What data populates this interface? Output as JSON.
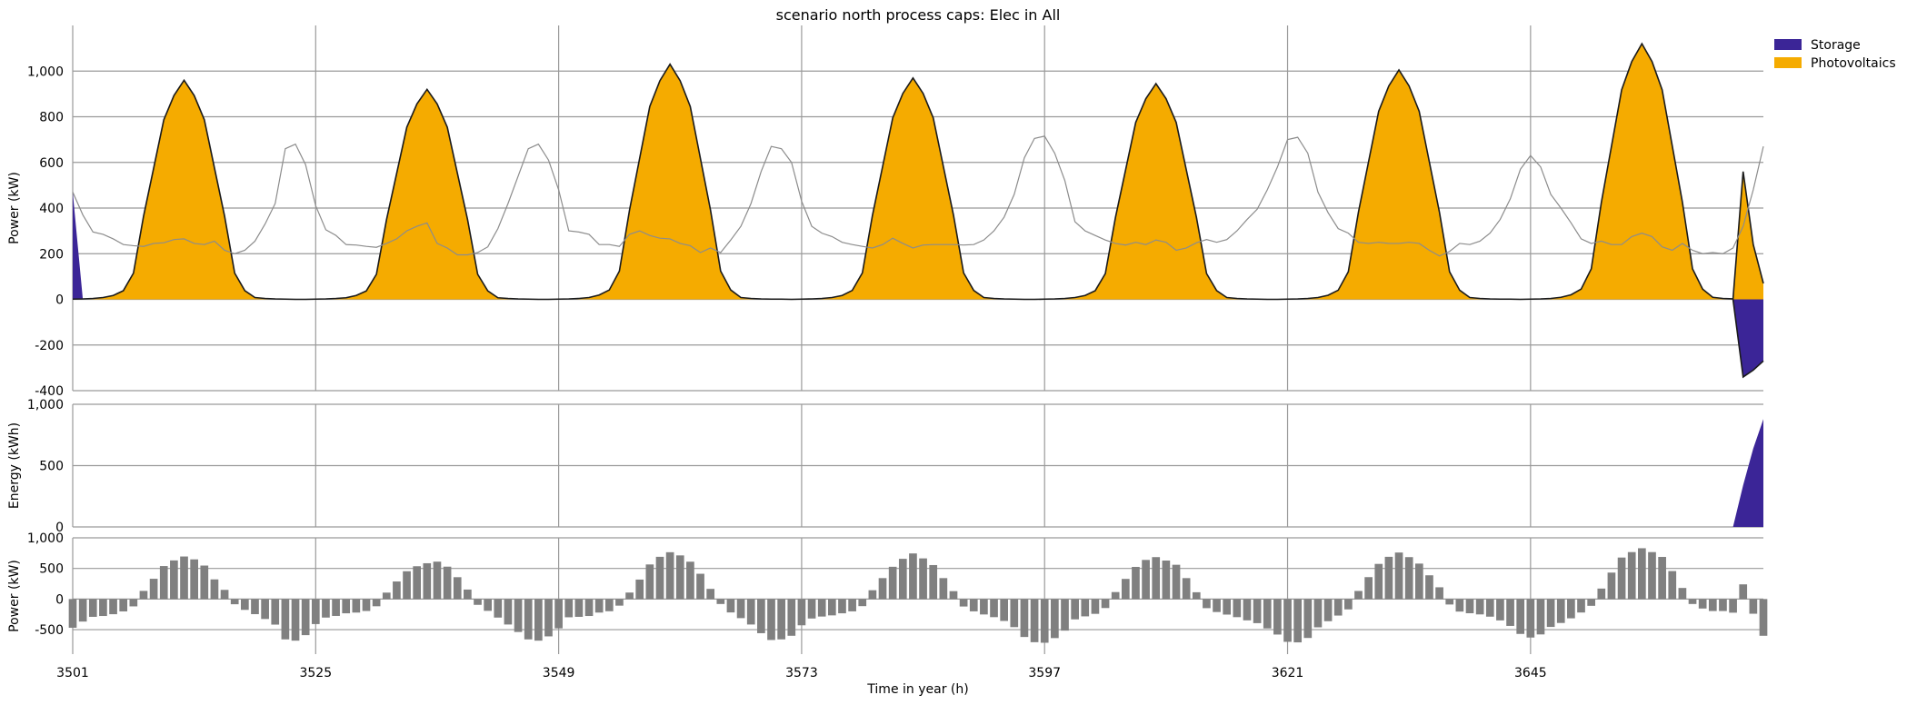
{
  "title": "scenario north process caps: Elec in All",
  "xlabel": "Time in year (h)",
  "x_ticks": [
    3501,
    3525,
    3549,
    3573,
    3597,
    3621,
    3645
  ],
  "x_range": [
    3501,
    3668
  ],
  "legend": {
    "placement": "top-right outside",
    "entries": [
      {
        "label": "Storage",
        "color": "#3b2597"
      },
      {
        "label": "Photovoltaics",
        "color": "#f5ab00"
      }
    ]
  },
  "chart_data": [
    {
      "type": "area",
      "panel": "power",
      "ylabel": "Power (kW)",
      "ylim": [
        -400,
        1200
      ],
      "y_ticks": [
        -400,
        -200,
        0,
        200,
        400,
        600,
        800,
        1000
      ],
      "y_tick_labels": [
        "-400",
        "-200",
        "0",
        "200",
        "400",
        "600",
        "800",
        "1,000"
      ],
      "grid": true,
      "series": [
        {
          "name": "Photovoltaics",
          "color": "#f5ab00",
          "generator": "pv_days",
          "days": [
            {
              "start": 3501,
              "peak": 960
            },
            {
              "start": 3525,
              "peak": 920
            },
            {
              "start": 3549,
              "peak": 1030
            },
            {
              "start": 3573,
              "peak": 970
            },
            {
              "start": 3597,
              "peak": 945
            },
            {
              "start": 3621,
              "peak": 1005
            },
            {
              "start": 3645,
              "peak": 1120
            }
          ],
          "final_values": [
            [
              3666,
              560
            ],
            [
              3667,
              240
            ],
            [
              3668,
              70
            ]
          ]
        },
        {
          "name": "Storage",
          "color": "#3b2597",
          "points": [
            [
              3501,
              470
            ],
            [
              3502,
              0
            ],
            [
              3665,
              0
            ],
            [
              3666,
              -340
            ],
            [
              3667,
              -310
            ],
            [
              3668,
              -270
            ]
          ]
        }
      ],
      "demand_line": {
        "color": "#8c8c8c",
        "points": [
          [
            3501,
            470
          ],
          [
            3502,
            370
          ],
          [
            3503,
            295
          ],
          [
            3504,
            285
          ],
          [
            3505,
            265
          ],
          [
            3506,
            240
          ],
          [
            3507,
            235
          ],
          [
            3508,
            232
          ],
          [
            3509,
            245
          ],
          [
            3510,
            248
          ],
          [
            3511,
            262
          ],
          [
            3512,
            265
          ],
          [
            3513,
            245
          ],
          [
            3514,
            240
          ],
          [
            3515,
            255
          ],
          [
            3516,
            215
          ],
          [
            3517,
            200
          ],
          [
            3518,
            215
          ],
          [
            3519,
            255
          ],
          [
            3520,
            330
          ],
          [
            3521,
            420
          ],
          [
            3522,
            660
          ],
          [
            3523,
            680
          ],
          [
            3524,
            590
          ],
          [
            3525,
            410
          ],
          [
            3526,
            305
          ],
          [
            3527,
            280
          ],
          [
            3528,
            240
          ],
          [
            3529,
            238
          ],
          [
            3530,
            232
          ],
          [
            3531,
            228
          ],
          [
            3532,
            245
          ],
          [
            3533,
            265
          ],
          [
            3534,
            300
          ],
          [
            3535,
            320
          ],
          [
            3536,
            335
          ],
          [
            3537,
            245
          ],
          [
            3538,
            225
          ],
          [
            3539,
            195
          ],
          [
            3540,
            195
          ],
          [
            3541,
            205
          ],
          [
            3542,
            230
          ],
          [
            3543,
            310
          ],
          [
            3544,
            420
          ],
          [
            3545,
            540
          ],
          [
            3546,
            660
          ],
          [
            3547,
            680
          ],
          [
            3548,
            610
          ],
          [
            3549,
            480
          ],
          [
            3550,
            300
          ],
          [
            3551,
            295
          ],
          [
            3552,
            285
          ],
          [
            3553,
            240
          ],
          [
            3554,
            240
          ],
          [
            3555,
            232
          ],
          [
            3556,
            285
          ],
          [
            3557,
            300
          ],
          [
            3558,
            280
          ],
          [
            3559,
            268
          ],
          [
            3560,
            265
          ],
          [
            3561,
            245
          ],
          [
            3562,
            235
          ],
          [
            3563,
            205
          ],
          [
            3564,
            225
          ],
          [
            3565,
            205
          ],
          [
            3566,
            260
          ],
          [
            3567,
            320
          ],
          [
            3568,
            420
          ],
          [
            3569,
            560
          ],
          [
            3570,
            670
          ],
          [
            3571,
            660
          ],
          [
            3572,
            600
          ],
          [
            3573,
            430
          ],
          [
            3574,
            320
          ],
          [
            3575,
            290
          ],
          [
            3576,
            275
          ],
          [
            3577,
            250
          ],
          [
            3578,
            240
          ],
          [
            3579,
            232
          ],
          [
            3580,
            225
          ],
          [
            3581,
            240
          ],
          [
            3582,
            268
          ],
          [
            3583,
            245
          ],
          [
            3584,
            225
          ],
          [
            3585,
            238
          ],
          [
            3586,
            240
          ],
          [
            3587,
            240
          ],
          [
            3588,
            240
          ],
          [
            3589,
            238
          ],
          [
            3590,
            240
          ],
          [
            3591,
            260
          ],
          [
            3592,
            300
          ],
          [
            3593,
            360
          ],
          [
            3594,
            460
          ],
          [
            3595,
            620
          ],
          [
            3596,
            705
          ],
          [
            3597,
            715
          ],
          [
            3598,
            640
          ],
          [
            3599,
            520
          ],
          [
            3600,
            340
          ],
          [
            3601,
            300
          ],
          [
            3602,
            280
          ],
          [
            3603,
            260
          ],
          [
            3604,
            245
          ],
          [
            3605,
            238
          ],
          [
            3606,
            250
          ],
          [
            3607,
            240
          ],
          [
            3608,
            260
          ],
          [
            3609,
            250
          ],
          [
            3610,
            215
          ],
          [
            3611,
            225
          ],
          [
            3612,
            248
          ],
          [
            3613,
            262
          ],
          [
            3614,
            250
          ],
          [
            3615,
            262
          ],
          [
            3616,
            300
          ],
          [
            3617,
            350
          ],
          [
            3618,
            395
          ],
          [
            3619,
            480
          ],
          [
            3620,
            580
          ],
          [
            3621,
            700
          ],
          [
            3622,
            710
          ],
          [
            3623,
            640
          ],
          [
            3624,
            470
          ],
          [
            3625,
            380
          ],
          [
            3626,
            310
          ],
          [
            3627,
            290
          ],
          [
            3628,
            250
          ],
          [
            3629,
            245
          ],
          [
            3630,
            250
          ],
          [
            3631,
            245
          ],
          [
            3632,
            245
          ],
          [
            3633,
            250
          ],
          [
            3634,
            245
          ],
          [
            3635,
            215
          ],
          [
            3636,
            190
          ],
          [
            3637,
            210
          ],
          [
            3638,
            245
          ],
          [
            3639,
            240
          ],
          [
            3640,
            255
          ],
          [
            3641,
            290
          ],
          [
            3642,
            350
          ],
          [
            3643,
            440
          ],
          [
            3644,
            570
          ],
          [
            3645,
            630
          ],
          [
            3646,
            580
          ],
          [
            3647,
            460
          ],
          [
            3648,
            400
          ],
          [
            3649,
            335
          ],
          [
            3650,
            265
          ],
          [
            3651,
            245
          ],
          [
            3652,
            255
          ],
          [
            3653,
            240
          ],
          [
            3654,
            240
          ],
          [
            3655,
            275
          ],
          [
            3656,
            290
          ],
          [
            3657,
            275
          ],
          [
            3658,
            230
          ],
          [
            3659,
            215
          ],
          [
            3660,
            245
          ],
          [
            3661,
            215
          ],
          [
            3662,
            200
          ],
          [
            3663,
            205
          ],
          [
            3664,
            200
          ],
          [
            3665,
            225
          ],
          [
            3666,
            320
          ],
          [
            3667,
            480
          ],
          [
            3668,
            670
          ]
        ]
      }
    },
    {
      "type": "area",
      "panel": "energy",
      "ylabel": "Energy (kWh)",
      "ylim": [
        0,
        1000
      ],
      "y_ticks": [
        0,
        500,
        1000
      ],
      "y_tick_labels": [
        "0",
        "500",
        "1,000"
      ],
      "grid": true,
      "series": [
        {
          "name": "Storage",
          "color": "#3b2597",
          "points": [
            [
              3501,
              0
            ],
            [
              3665,
              0
            ],
            [
              3666,
              340
            ],
            [
              3667,
              640
            ],
            [
              3668,
              880
            ]
          ]
        }
      ]
    },
    {
      "type": "bar",
      "panel": "net",
      "ylabel": "Power (kW)",
      "ylim": [
        -900,
        1000
      ],
      "y_ticks": [
        -500,
        0,
        500,
        1000
      ],
      "y_tick_labels": [
        "-500",
        "0",
        "500",
        "1,000"
      ],
      "grid": true,
      "color": "#808080",
      "generator": "pv_minus_demand"
    }
  ]
}
